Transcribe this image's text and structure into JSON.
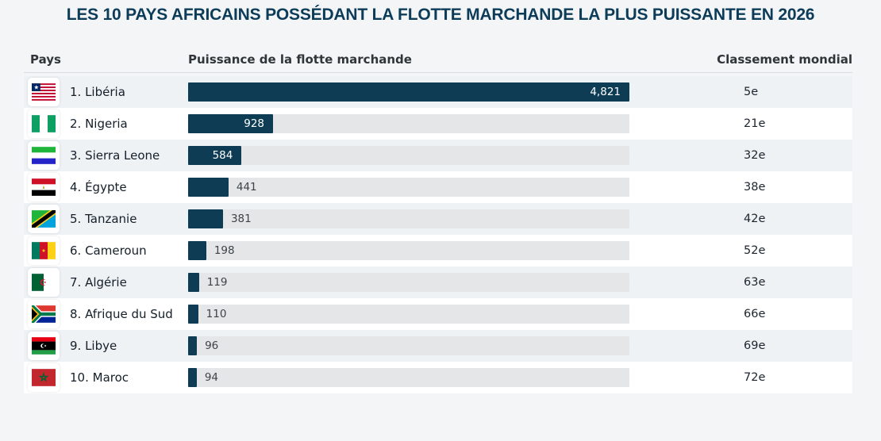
{
  "title": "LES 10 PAYS AFRICAINS POSSÉDANT LA FLOTTE MARCHANDE LA PLUS PUISSANTE EN 2026",
  "columns": {
    "country": "Pays",
    "power": "Puissance de la flotte marchande",
    "world_rank": "Classement mondial"
  },
  "colors": {
    "title_text": "#0d3c59",
    "bar_fill": "#0e3c55",
    "bar_track": "#e5e6e8",
    "row_alt": "#eff2f5",
    "row_even": "#ffffff",
    "page_bg": "#f3f5f7"
  },
  "chart_data": {
    "type": "bar",
    "orientation": "horizontal",
    "title": "LES 10 PAYS AFRICAINS POSSÉDANT LA FLOTTE MARCHANDE LA PLUS PUISSANTE EN 2026",
    "categories": [
      "Libéria",
      "Nigeria",
      "Sierra Leone",
      "Égypte",
      "Tanzanie",
      "Cameroun",
      "Algérie",
      "Afrique du Sud",
      "Libye",
      "Maroc"
    ],
    "values": [
      4821,
      928,
      584,
      441,
      381,
      198,
      119,
      110,
      96,
      94
    ],
    "xlim": [
      0,
      4821
    ],
    "grid": false,
    "legend": "none",
    "rows": [
      {
        "label": "1. Libéria",
        "flag": "liberia",
        "value": 4821,
        "value_label": "4,821",
        "rank": "5e"
      },
      {
        "label": "2. Nigeria",
        "flag": "nigeria",
        "value": 928,
        "value_label": "928",
        "rank": "21e"
      },
      {
        "label": "3. Sierra Leone",
        "flag": "sierra-leone",
        "value": 584,
        "value_label": "584",
        "rank": "32e"
      },
      {
        "label": "4. Égypte",
        "flag": "egypt",
        "value": 441,
        "value_label": "441",
        "rank": "38e"
      },
      {
        "label": "5. Tanzanie",
        "flag": "tanzania",
        "value": 381,
        "value_label": "381",
        "rank": "42e"
      },
      {
        "label": "6. Cameroun",
        "flag": "cameroon",
        "value": 198,
        "value_label": "198",
        "rank": "52e"
      },
      {
        "label": "7. Algérie",
        "flag": "algeria",
        "value": 119,
        "value_label": "119",
        "rank": "63e"
      },
      {
        "label": "8. Afrique du Sud",
        "flag": "south-africa",
        "value": 110,
        "value_label": "110",
        "rank": "66e"
      },
      {
        "label": "9. Libye",
        "flag": "libya",
        "value": 96,
        "value_label": "96",
        "rank": "69e"
      },
      {
        "label": "10. Maroc",
        "flag": "morocco",
        "value": 94,
        "value_label": "94",
        "rank": "72e"
      }
    ]
  }
}
